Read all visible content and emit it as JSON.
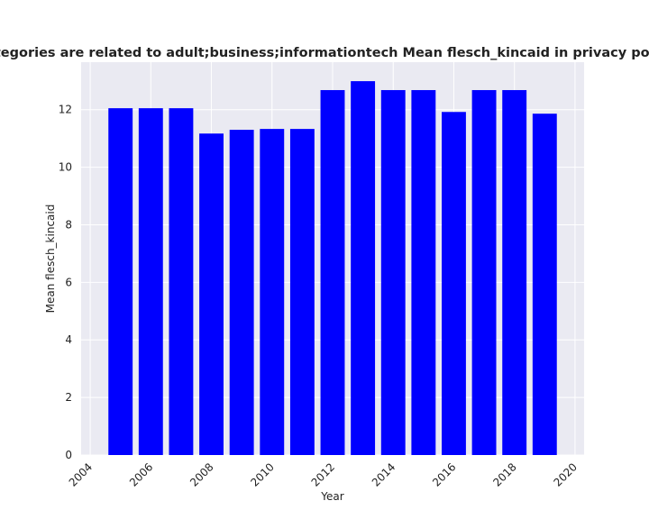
{
  "chart_data": {
    "type": "bar",
    "title": "categories are related to adult;business;informationtech Mean flesch_kincaid in privacy policies",
    "xlabel": "Year",
    "ylabel": "Mean flesch_kincaid",
    "x": [
      2005,
      2006,
      2007,
      2008,
      2009,
      2010,
      2011,
      2012,
      2013,
      2014,
      2015,
      2016,
      2017,
      2018,
      2019
    ],
    "values": [
      12.05,
      12.05,
      12.05,
      11.17,
      11.3,
      11.33,
      11.33,
      12.68,
      12.99,
      12.68,
      12.68,
      11.92,
      12.68,
      12.68,
      11.86
    ],
    "xlim": [
      2003.7,
      2020.3
    ],
    "ylim": [
      0,
      13.65
    ],
    "xticks": [
      2004,
      2006,
      2008,
      2010,
      2012,
      2014,
      2016,
      2018,
      2020
    ],
    "yticks": [
      0,
      2,
      4,
      6,
      8,
      10,
      12
    ],
    "bar_color": "#0000ff",
    "plot_background": "#eaeaf2",
    "grid_color": "#ffffff",
    "grid": true,
    "legend": false
  }
}
